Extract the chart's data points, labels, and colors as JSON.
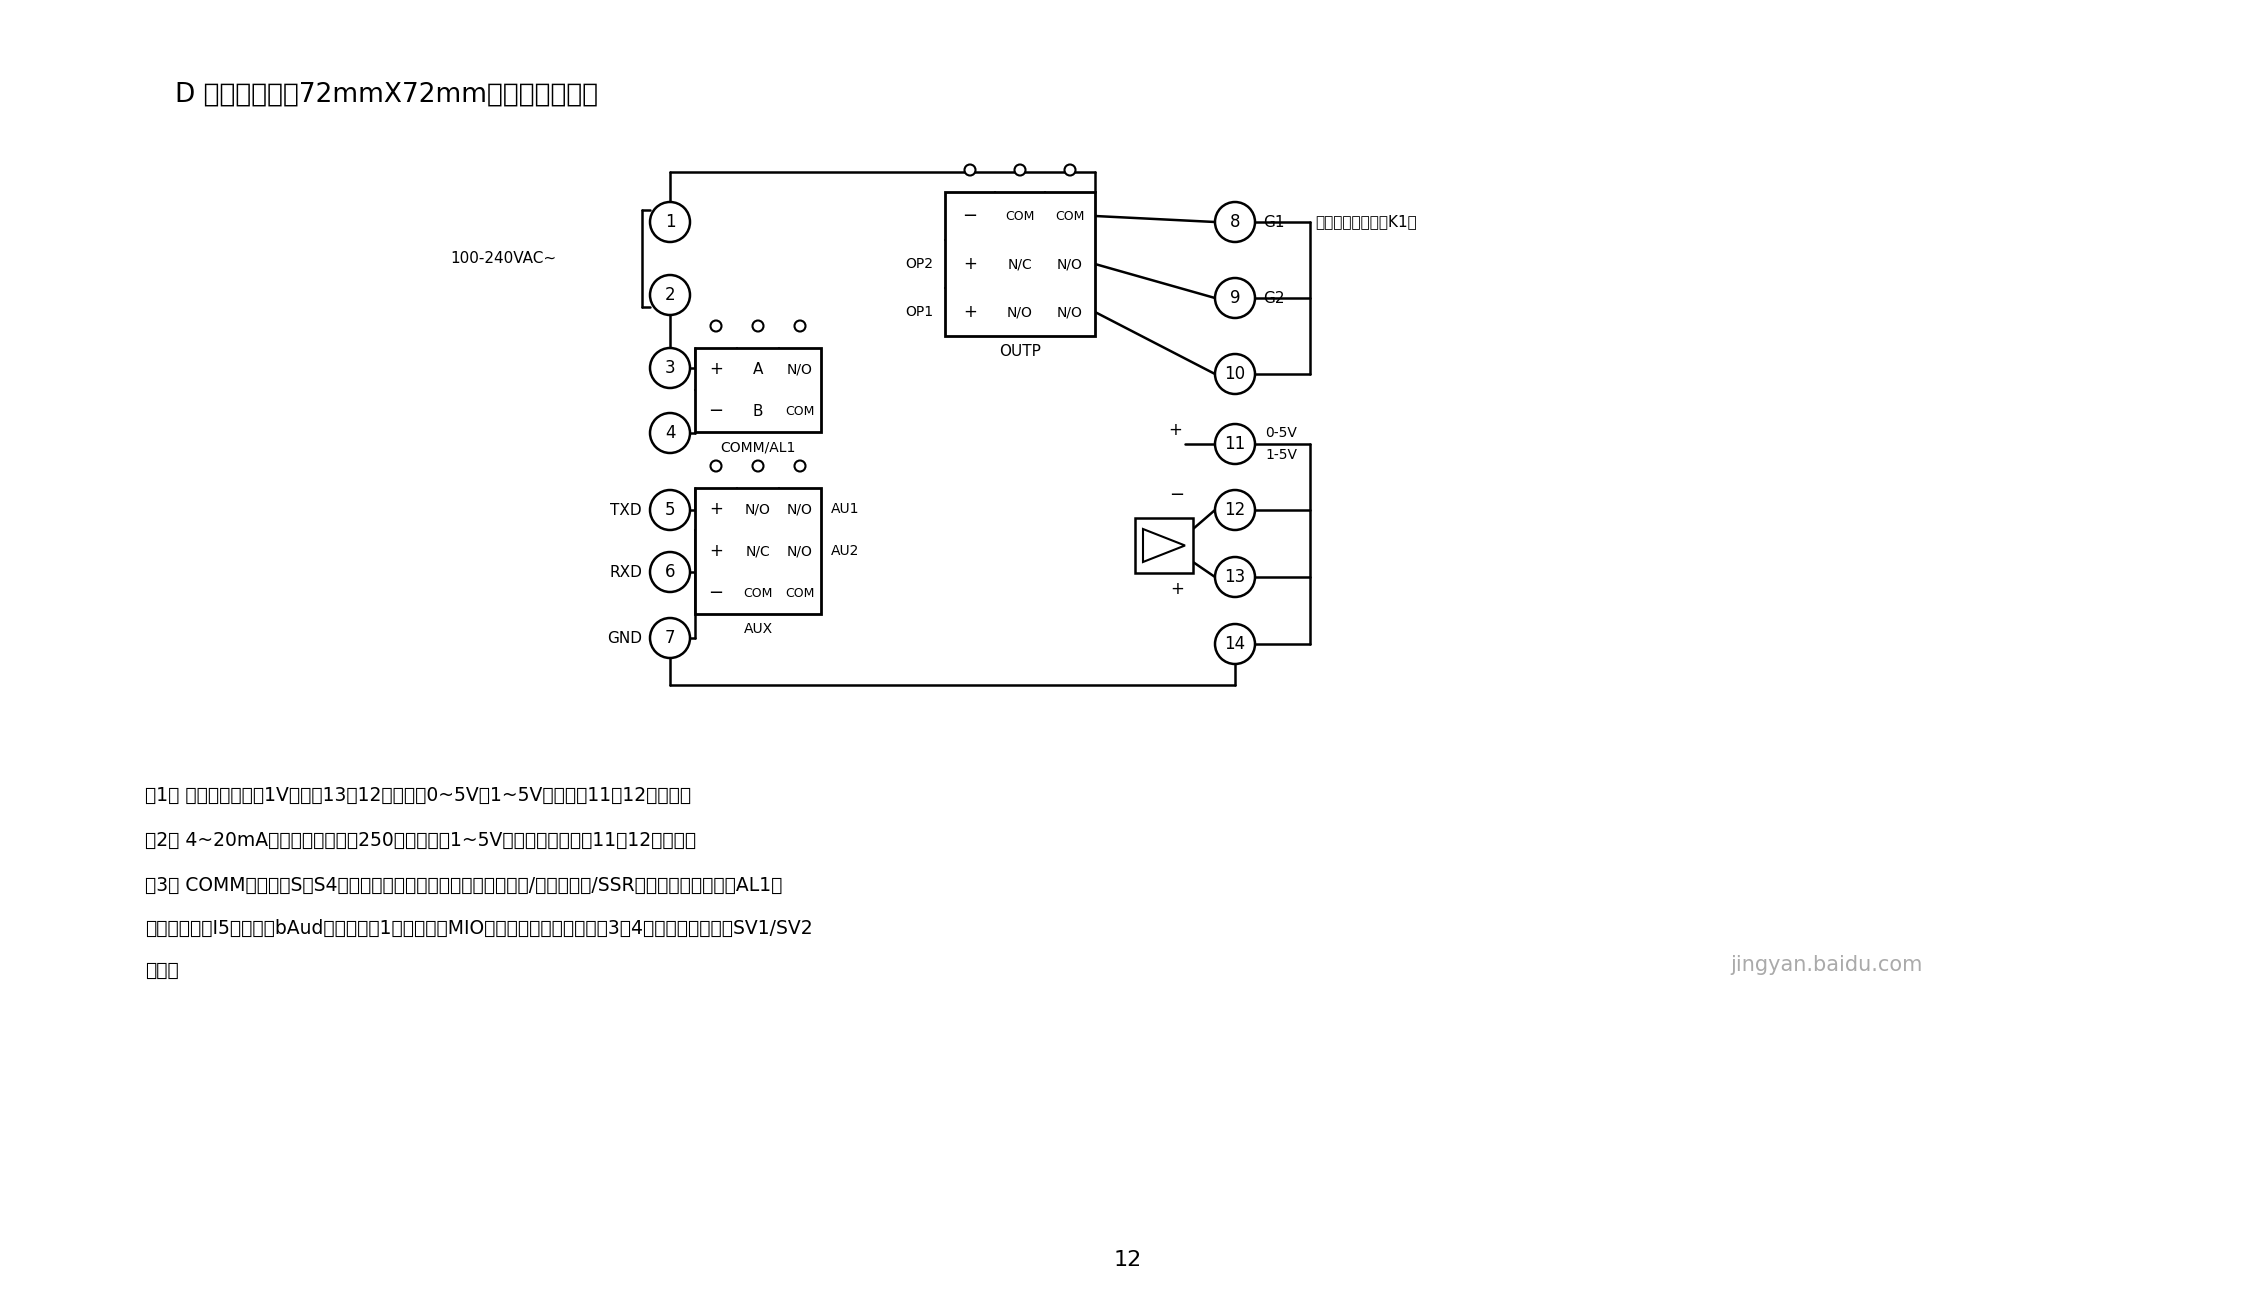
{
  "title": "D 型面板仪表（72mmX72mm）接线图如下：",
  "page_num": "12",
  "note1": "注1： 线性电压量程在1V以下的13、12端输入，0~5V及1~5V的信号匔11、12端输入。",
  "note2": "注2： 4~20mA线性电流输入可用250欧电阴变为1~5V电压信号，然后从11、12端输入。",
  "note3a": "注3： COMM位置安装S或S4通讯接口模块时用于通讯；安装继电器/无触点开关/SSR电压输出模块时用于AL1报",
  "note3b": "警输出；安装I5模块并将bAud参数设置为1，则可虚拟MIO模块开关量输入功能，在3、4端外接的开关实现SV1/SV2",
  "note3c": "切换。",
  "watermark": "jingyan.baidu.com",
  "bg_color": "#ffffff",
  "line_color": "#000000",
  "ssr_label": "可控硅触发输出（K1）"
}
